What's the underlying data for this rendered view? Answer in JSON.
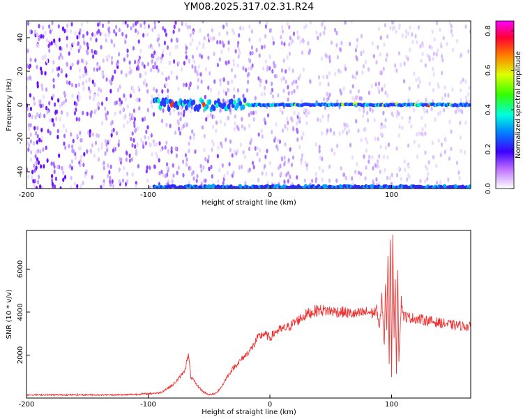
{
  "chart_data": [
    {
      "type": "heatmap",
      "title": "YM08.2025.317.02.31.R24",
      "xlabel": "Height of straight line (km)",
      "ylabel": "Frequency (Hz)",
      "xlim": [
        -200,
        165
      ],
      "ylim": [
        -50,
        50
      ],
      "x_ticks": [
        "-200",
        "-100",
        "0",
        "100"
      ],
      "y_ticks": [
        "40",
        "20",
        "0",
        "-20",
        "-40"
      ],
      "colorbar": {
        "label": "Normalized spectral amplitude",
        "range": [
          0,
          0.85
        ],
        "ticks": [
          "0.8",
          "0.6",
          "0.4",
          "0.2",
          "0.0"
        ],
        "colormap": "rainbow (white, purple, blue, cyan, green, yellow, red, magenta)"
      },
      "features": {
        "central_line_hz": 0,
        "bottom_edge_band_hz": -49
      }
    },
    {
      "type": "line",
      "xlabel": "Height of straight line (km)",
      "ylabel": "SNR (10 * v/v)",
      "xlim": [
        -200,
        165
      ],
      "ylim": [
        0,
        7800
      ],
      "x_ticks": [
        "-200",
        "-100",
        "0",
        "100"
      ],
      "y_ticks": [
        "2000",
        "4000",
        "6000"
      ],
      "series": [
        {
          "color": "#ee3333",
          "x": [
            -200,
            -180,
            -160,
            -140,
            -120,
            -100,
            -90,
            -80,
            -75,
            -70,
            -67,
            -65,
            -60,
            -55,
            -50,
            -45,
            -40,
            -35,
            -30,
            -25,
            -20,
            -15,
            -10,
            -5,
            0,
            5,
            10,
            15,
            20,
            25,
            30,
            40,
            50,
            60,
            70,
            80,
            85,
            88,
            90,
            92,
            94,
            95,
            96,
            97,
            98,
            99,
            100,
            101,
            102,
            103,
            104,
            105,
            106,
            108,
            110,
            120,
            130,
            140,
            150,
            160,
            165
          ],
          "y": [
            150,
            150,
            150,
            150,
            150,
            200,
            250,
            600,
            900,
            1300,
            2000,
            1000,
            600,
            300,
            150,
            200,
            500,
            1000,
            1400,
            1700,
            2000,
            2300,
            2800,
            3000,
            2800,
            3100,
            3200,
            3300,
            3500,
            3700,
            3900,
            4100,
            4050,
            4000,
            3900,
            4000,
            3950,
            4100,
            3200,
            4600,
            2500,
            5500,
            3000,
            6800,
            1500,
            7800,
            900,
            7800,
            3000,
            5200,
            1200,
            6200,
            1800,
            4500,
            3800,
            3700,
            3600,
            3500,
            3400,
            3350,
            3300
          ]
        }
      ]
    }
  ]
}
